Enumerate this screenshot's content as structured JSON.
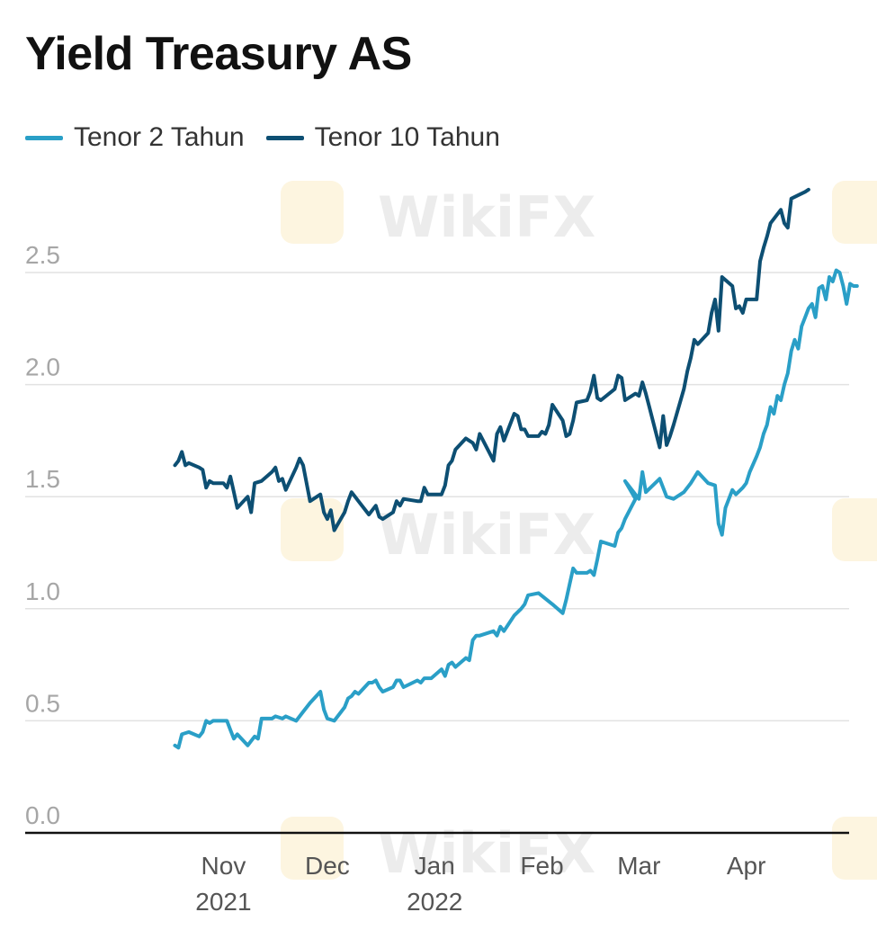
{
  "chart_data": {
    "type": "line",
    "title": "Yield Treasury AS",
    "xlabel": "",
    "ylabel": "",
    "ylim": [
      0,
      2.9
    ],
    "y_ticks": [
      0.0,
      0.5,
      1.0,
      1.5,
      2.0,
      2.5
    ],
    "y_tick_labels": [
      "0.0",
      "0.5",
      "1.0",
      "1.5",
      "2.0",
      "2.5"
    ],
    "x_tick_labels": [
      {
        "date": "2021-11-01",
        "label": "Nov",
        "year": "2021"
      },
      {
        "date": "2021-12-01",
        "label": "Dec",
        "year": ""
      },
      {
        "date": "2022-01-01",
        "label": "Jan",
        "year": "2022"
      },
      {
        "date": "2022-02-01",
        "label": "Feb",
        "year": ""
      },
      {
        "date": "2022-03-01",
        "label": "Mar",
        "year": ""
      },
      {
        "date": "2022-04-01",
        "label": "Apr",
        "year": ""
      }
    ],
    "xlim": [
      "2021-10-15",
      "2022-04-25"
    ],
    "grid": true,
    "legend_position": "top-left",
    "series": [
      {
        "name": "Tenor 2 Tahun",
        "color": "#2a9fc7",
        "points": [
          [
            "2021-10-18",
            0.39
          ],
          [
            "2021-10-19",
            0.38
          ],
          [
            "2021-10-20",
            0.44
          ],
          [
            "2021-10-22",
            0.45
          ],
          [
            "2021-10-25",
            0.43
          ],
          [
            "2021-10-26",
            0.45
          ],
          [
            "2021-10-27",
            0.5
          ],
          [
            "2021-10-28",
            0.49
          ],
          [
            "2021-10-29",
            0.5
          ],
          [
            "2021-11-02",
            0.5
          ],
          [
            "2021-11-03",
            0.46
          ],
          [
            "2021-11-04",
            0.42
          ],
          [
            "2021-11-05",
            0.44
          ],
          [
            "2021-11-08",
            0.39
          ],
          [
            "2021-11-09",
            0.41
          ],
          [
            "2021-11-10",
            0.43
          ],
          [
            "2021-11-11",
            0.42
          ],
          [
            "2021-11-12",
            0.51
          ],
          [
            "2021-11-15",
            0.51
          ],
          [
            "2021-11-16",
            0.52
          ],
          [
            "2021-11-18",
            0.51
          ],
          [
            "2021-11-19",
            0.52
          ],
          [
            "2021-11-22",
            0.5
          ],
          [
            "2021-11-24",
            0.54
          ],
          [
            "2021-11-26",
            0.58
          ],
          [
            "2021-11-29",
            0.63
          ],
          [
            "2021-11-30",
            0.55
          ],
          [
            "2021-12-01",
            0.51
          ],
          [
            "2021-12-03",
            0.5
          ],
          [
            "2021-12-06",
            0.56
          ],
          [
            "2021-12-07",
            0.6
          ],
          [
            "2021-12-08",
            0.61
          ],
          [
            "2021-12-09",
            0.63
          ],
          [
            "2021-12-10",
            0.62
          ],
          [
            "2021-12-13",
            0.67
          ],
          [
            "2021-12-14",
            0.67
          ],
          [
            "2021-12-15",
            0.68
          ],
          [
            "2021-12-16",
            0.65
          ],
          [
            "2021-12-17",
            0.63
          ],
          [
            "2021-12-20",
            0.65
          ],
          [
            "2021-12-21",
            0.68
          ],
          [
            "2021-12-22",
            0.68
          ],
          [
            "2021-12-23",
            0.65
          ],
          [
            "2021-12-27",
            0.68
          ],
          [
            "2021-12-28",
            0.67
          ],
          [
            "2021-12-29",
            0.69
          ],
          [
            "2021-12-31",
            0.69
          ],
          [
            "2022-01-03",
            0.73
          ],
          [
            "2022-01-04",
            0.7
          ],
          [
            "2022-01-05",
            0.75
          ],
          [
            "2022-01-06",
            0.76
          ],
          [
            "2022-01-07",
            0.74
          ],
          [
            "2022-01-10",
            0.78
          ],
          [
            "2022-01-11",
            0.77
          ],
          [
            "2022-01-12",
            0.86
          ],
          [
            "2022-01-13",
            0.88
          ],
          [
            "2022-01-14",
            0.88
          ],
          [
            "2022-01-18",
            0.9
          ],
          [
            "2022-01-19",
            0.88
          ],
          [
            "2022-01-20",
            0.92
          ],
          [
            "2022-01-21",
            0.9
          ],
          [
            "2022-01-24",
            0.97
          ],
          [
            "2022-01-26",
            1.0
          ],
          [
            "2022-01-27",
            1.02
          ],
          [
            "2022-01-28",
            1.06
          ],
          [
            "2022-01-31",
            1.07
          ],
          [
            "2022-02-04",
            1.02
          ],
          [
            "2022-02-07",
            0.98
          ],
          [
            "2022-02-08",
            1.04
          ],
          [
            "2022-02-09",
            1.11
          ],
          [
            "2022-02-10",
            1.18
          ],
          [
            "2022-02-11",
            1.16
          ],
          [
            "2022-02-14",
            1.16
          ],
          [
            "2022-02-15",
            1.17
          ],
          [
            "2022-02-16",
            1.15
          ],
          [
            "2022-02-17",
            1.22
          ],
          [
            "2022-02-18",
            1.3
          ],
          [
            "2022-02-22",
            1.28
          ],
          [
            "2022-02-23",
            1.34
          ],
          [
            "2022-02-24",
            1.36
          ],
          [
            "2022-02-25",
            1.4
          ],
          [
            "2022-02-28",
            1.49
          ],
          [
            "2022-02-25",
            1.57
          ],
          [
            "2022-03-01",
            1.49
          ],
          [
            "2022-03-02",
            1.61
          ],
          [
            "2022-03-03",
            1.52
          ],
          [
            "2022-03-07",
            1.58
          ],
          [
            "2022-03-09",
            1.5
          ],
          [
            "2022-03-11",
            1.49
          ],
          [
            "2022-03-14",
            1.52
          ],
          [
            "2022-03-16",
            1.56
          ],
          [
            "2022-03-18",
            1.61
          ],
          [
            "2022-03-21",
            1.56
          ],
          [
            "2022-03-23",
            1.55
          ],
          [
            "2022-03-24",
            1.38
          ],
          [
            "2022-03-25",
            1.33
          ],
          [
            "2022-03-26",
            1.45
          ],
          [
            "2022-03-28",
            1.53
          ],
          [
            "2022-03-29",
            1.51
          ],
          [
            "2022-03-31",
            1.54
          ],
          [
            "2022-04-01",
            1.56
          ],
          [
            "2022-04-02",
            1.61
          ],
          [
            "2022-04-04",
            1.68
          ],
          [
            "2022-04-05",
            1.72
          ],
          [
            "2022-04-06",
            1.78
          ],
          [
            "2022-04-07",
            1.82
          ],
          [
            "2022-04-08",
            1.9
          ],
          [
            "2022-04-09",
            1.87
          ],
          [
            "2022-04-10",
            1.95
          ],
          [
            "2022-04-11",
            1.93
          ],
          [
            "2022-04-12",
            2.0
          ],
          [
            "2022-04-13",
            2.05
          ],
          [
            "2022-04-14",
            2.15
          ],
          [
            "2022-04-15",
            2.2
          ],
          [
            "2022-04-16",
            2.16
          ],
          [
            "2022-04-17",
            2.26
          ],
          [
            "2022-04-18",
            2.3
          ],
          [
            "2022-04-19",
            2.34
          ],
          [
            "2022-04-20",
            2.36
          ],
          [
            "2022-04-21",
            2.3
          ],
          [
            "2022-04-22",
            2.43
          ],
          [
            "2022-04-23",
            2.44
          ],
          [
            "2022-04-24",
            2.38
          ],
          [
            "2022-04-25",
            2.48
          ],
          [
            "2022-04-26",
            2.46
          ],
          [
            "2022-04-27",
            2.51
          ],
          [
            "2022-04-28",
            2.5
          ],
          [
            "2022-04-29",
            2.44
          ],
          [
            "2022-04-30",
            2.36
          ],
          [
            "2022-05-01",
            2.45
          ],
          [
            "2022-05-02",
            2.44
          ],
          [
            "2022-05-03",
            2.44
          ]
        ]
      },
      {
        "name": "Tenor 10 Tahun",
        "color": "#0d4f73",
        "points": [
          [
            "2021-10-18",
            1.64
          ],
          [
            "2021-10-19",
            1.66
          ],
          [
            "2021-10-20",
            1.7
          ],
          [
            "2021-10-21",
            1.64
          ],
          [
            "2021-10-22",
            1.65
          ],
          [
            "2021-10-25",
            1.63
          ],
          [
            "2021-10-26",
            1.62
          ],
          [
            "2021-10-27",
            1.54
          ],
          [
            "2021-10-28",
            1.57
          ],
          [
            "2021-10-29",
            1.56
          ],
          [
            "2021-11-01",
            1.56
          ],
          [
            "2021-11-02",
            1.54
          ],
          [
            "2021-11-03",
            1.59
          ],
          [
            "2021-11-04",
            1.52
          ],
          [
            "2021-11-05",
            1.45
          ],
          [
            "2021-11-08",
            1.5
          ],
          [
            "2021-11-09",
            1.43
          ],
          [
            "2021-11-10",
            1.56
          ],
          [
            "2021-11-12",
            1.57
          ],
          [
            "2021-11-15",
            1.61
          ],
          [
            "2021-11-16",
            1.63
          ],
          [
            "2021-11-17",
            1.57
          ],
          [
            "2021-11-18",
            1.58
          ],
          [
            "2021-11-19",
            1.53
          ],
          [
            "2021-11-22",
            1.63
          ],
          [
            "2021-11-23",
            1.67
          ],
          [
            "2021-11-24",
            1.64
          ],
          [
            "2021-11-26",
            1.48
          ],
          [
            "2021-11-29",
            1.51
          ],
          [
            "2021-11-30",
            1.43
          ],
          [
            "2021-12-01",
            1.4
          ],
          [
            "2021-12-02",
            1.44
          ],
          [
            "2021-12-03",
            1.35
          ],
          [
            "2021-12-06",
            1.43
          ],
          [
            "2021-12-07",
            1.48
          ],
          [
            "2021-12-08",
            1.52
          ],
          [
            "2021-12-09",
            1.5
          ],
          [
            "2021-12-10",
            1.48
          ],
          [
            "2021-12-13",
            1.42
          ],
          [
            "2021-12-14",
            1.44
          ],
          [
            "2021-12-15",
            1.46
          ],
          [
            "2021-12-16",
            1.41
          ],
          [
            "2021-12-17",
            1.4
          ],
          [
            "2021-12-20",
            1.43
          ],
          [
            "2021-12-21",
            1.48
          ],
          [
            "2021-12-22",
            1.46
          ],
          [
            "2021-12-23",
            1.49
          ],
          [
            "2021-12-27",
            1.48
          ],
          [
            "2021-12-28",
            1.48
          ],
          [
            "2021-12-29",
            1.54
          ],
          [
            "2021-12-30",
            1.51
          ],
          [
            "2022-01-03",
            1.51
          ],
          [
            "2022-01-04",
            1.55
          ],
          [
            "2022-01-05",
            1.64
          ],
          [
            "2022-01-06",
            1.66
          ],
          [
            "2022-01-07",
            1.71
          ],
          [
            "2022-01-10",
            1.76
          ],
          [
            "2022-01-11",
            1.75
          ],
          [
            "2022-01-12",
            1.74
          ],
          [
            "2022-01-13",
            1.71
          ],
          [
            "2022-01-14",
            1.78
          ],
          [
            "2022-01-18",
            1.66
          ],
          [
            "2022-01-19",
            1.78
          ],
          [
            "2022-01-20",
            1.81
          ],
          [
            "2022-01-21",
            1.75
          ],
          [
            "2022-01-24",
            1.87
          ],
          [
            "2022-01-25",
            1.86
          ],
          [
            "2022-01-26",
            1.8
          ],
          [
            "2022-01-27",
            1.8
          ],
          [
            "2022-01-28",
            1.77
          ],
          [
            "2022-01-31",
            1.77
          ],
          [
            "2022-02-01",
            1.79
          ],
          [
            "2022-02-02",
            1.78
          ],
          [
            "2022-02-03",
            1.82
          ],
          [
            "2022-02-04",
            1.91
          ],
          [
            "2022-02-07",
            1.84
          ],
          [
            "2022-02-08",
            1.77
          ],
          [
            "2022-02-09",
            1.78
          ],
          [
            "2022-02-10",
            1.84
          ],
          [
            "2022-02-11",
            1.92
          ],
          [
            "2022-02-14",
            1.93
          ],
          [
            "2022-02-15",
            1.97
          ],
          [
            "2022-02-16",
            2.04
          ],
          [
            "2022-02-17",
            1.94
          ],
          [
            "2022-02-18",
            1.93
          ],
          [
            "2022-02-22",
            1.98
          ],
          [
            "2022-02-23",
            2.04
          ],
          [
            "2022-02-24",
            2.03
          ],
          [
            "2022-02-25",
            1.93
          ],
          [
            "2022-02-28",
            1.96
          ],
          [
            "2022-03-01",
            1.95
          ],
          [
            "2022-03-02",
            2.01
          ],
          [
            "2022-03-03",
            1.96
          ],
          [
            "2022-03-04",
            1.9
          ],
          [
            "2022-03-07",
            1.72
          ],
          [
            "2022-03-08",
            1.86
          ],
          [
            "2022-03-09",
            1.73
          ],
          [
            "2022-03-10",
            1.77
          ],
          [
            "2022-03-11",
            1.82
          ],
          [
            "2022-03-14",
            1.98
          ],
          [
            "2022-03-15",
            2.06
          ],
          [
            "2022-03-16",
            2.12
          ],
          [
            "2022-03-17",
            2.2
          ],
          [
            "2022-03-18",
            2.18
          ],
          [
            "2022-03-21",
            2.23
          ],
          [
            "2022-03-22",
            2.32
          ],
          [
            "2022-03-23",
            2.38
          ],
          [
            "2022-03-24",
            2.24
          ],
          [
            "2022-03-25",
            2.48
          ],
          [
            "2022-03-28",
            2.44
          ],
          [
            "2022-03-29",
            2.34
          ],
          [
            "2022-03-30",
            2.35
          ],
          [
            "2022-03-31",
            2.32
          ],
          [
            "2022-04-01",
            2.38
          ],
          [
            "2022-04-04",
            2.38
          ],
          [
            "2022-04-05",
            2.55
          ],
          [
            "2022-04-06",
            2.61
          ],
          [
            "2022-04-07",
            2.66
          ],
          [
            "2022-04-08",
            2.72
          ],
          [
            "2022-04-11",
            2.78
          ],
          [
            "2022-04-12",
            2.72
          ],
          [
            "2022-04-13",
            2.7
          ],
          [
            "2022-04-14",
            2.83
          ],
          [
            "2022-04-18",
            2.86
          ],
          [
            "2022-04-19",
            2.87
          ]
        ]
      }
    ]
  },
  "watermark": {
    "text": "WikiFX"
  }
}
